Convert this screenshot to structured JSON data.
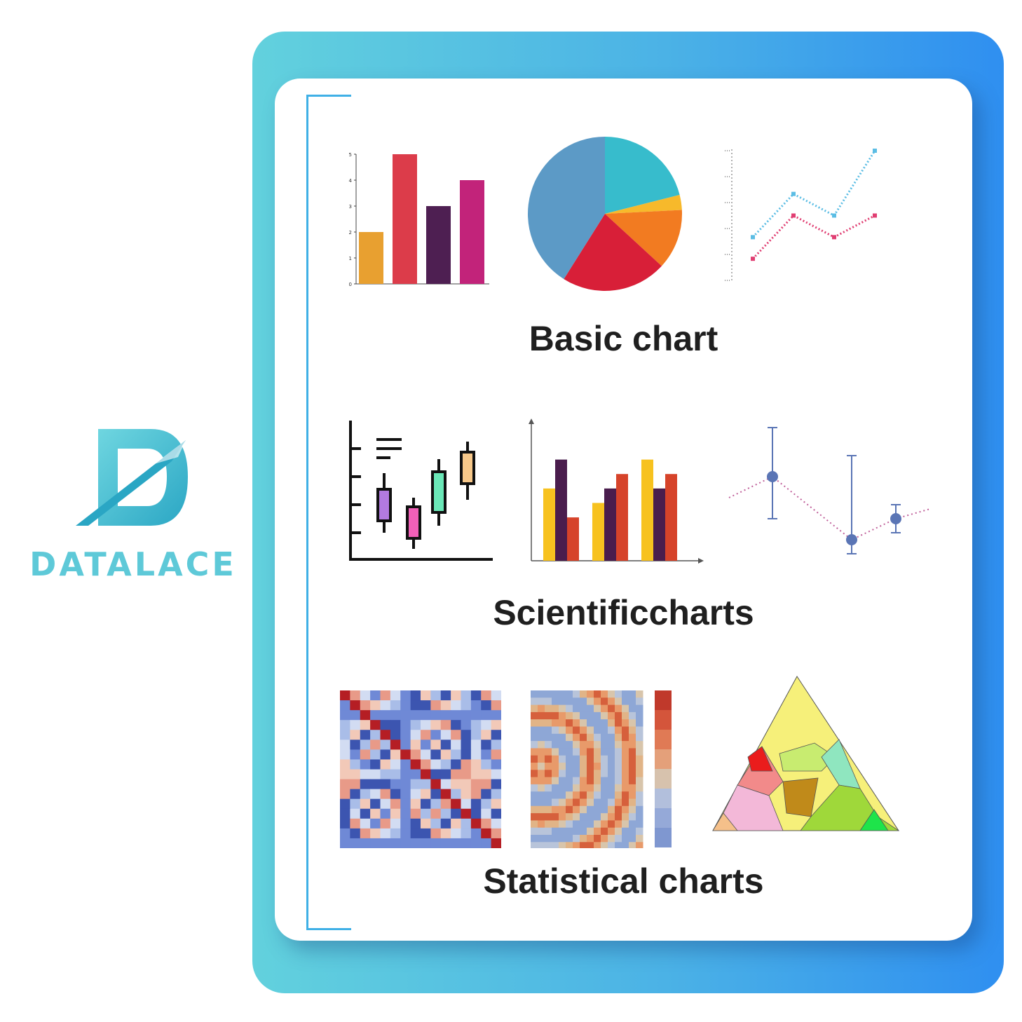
{
  "brand": {
    "name": "DATALACE",
    "logo_icon": "d-monogram-logo",
    "colors": {
      "teal": "#5ec9d8",
      "blue": "#2f8ff0"
    }
  },
  "sections": {
    "basic": {
      "title": "Basic chart"
    },
    "scientific": {
      "title": "Scientificcharts"
    },
    "statistical": {
      "title": "Statistical charts"
    }
  },
  "chart_data": [
    {
      "type": "bar",
      "categories": [
        "",
        "",
        "",
        ""
      ],
      "values": [
        2,
        5,
        3,
        4
      ],
      "ylim": [
        0,
        5
      ],
      "yticks": [
        "0",
        "1",
        "2",
        "3",
        "4",
        "5"
      ],
      "colors": [
        "#e8a030",
        "#dc3c4a",
        "#4e1f52",
        "#c2237a"
      ]
    },
    {
      "type": "pie",
      "values": [
        20,
        3,
        12,
        21,
        39
      ],
      "colors": [
        "#37bccc",
        "#f7b92b",
        "#f27b21",
        "#d81f38",
        "#5c9ac6"
      ]
    },
    {
      "type": "line",
      "series": [
        {
          "values": [
            1.0,
            2.0,
            1.5,
            3.0
          ],
          "color": "#5bbde4"
        },
        {
          "values": [
            0.5,
            1.5,
            1.0,
            1.5
          ],
          "color": "#e03e72"
        }
      ],
      "ylim": [
        0,
        3
      ]
    },
    {
      "type": "bar",
      "categories": [
        "",
        "",
        ""
      ],
      "series": [
        {
          "values": [
            5,
            4,
            7
          ],
          "color": "#f7c21f"
        },
        {
          "values": [
            7,
            5,
            5
          ],
          "color": "#4a1d4d"
        },
        {
          "values": [
            3,
            6,
            6
          ],
          "color": "#d6432a"
        }
      ]
    },
    {
      "type": "scatter",
      "points": [
        {
          "y": 6,
          "low": 3,
          "high": 9.5
        },
        {
          "y": 1.5,
          "low": 0.5,
          "high": 7.5
        },
        {
          "y": 3,
          "low": 2,
          "high": 4
        }
      ],
      "color": "#5a75b5"
    },
    {
      "type": "heatmap"
    },
    {
      "type": "heatmap"
    },
    {
      "type": "other"
    }
  ]
}
